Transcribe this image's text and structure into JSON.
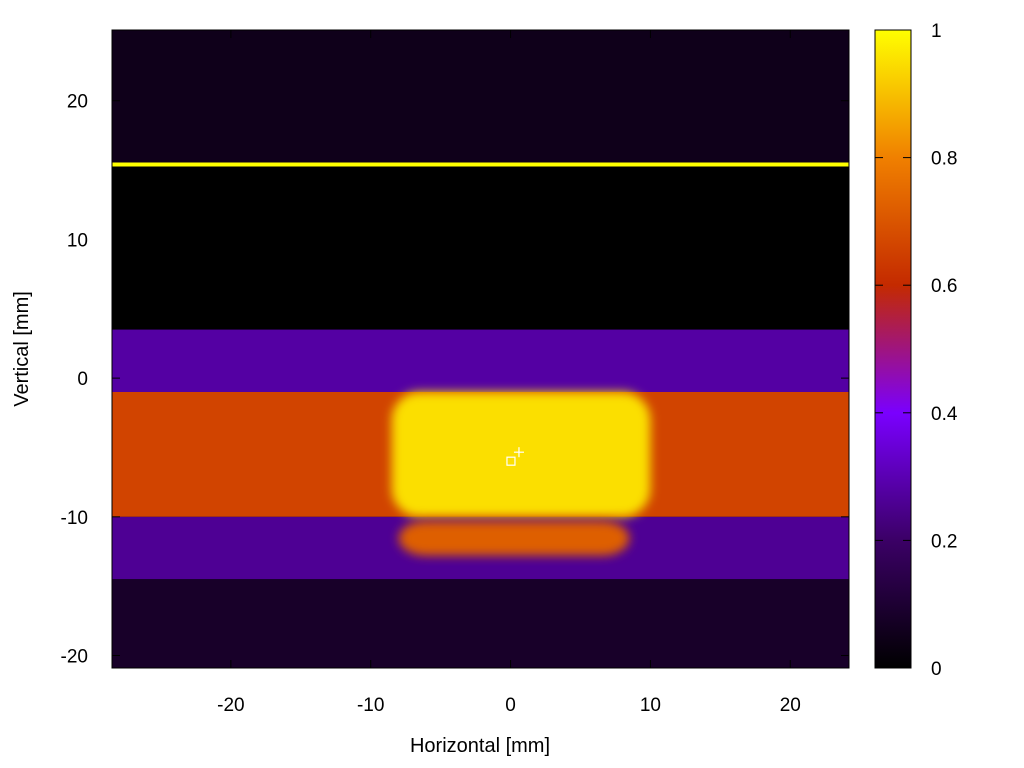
{
  "chart_data": {
    "type": "heatmap",
    "title": "",
    "xlabel": "Horizontal [mm]",
    "ylabel": "Vertical [mm]",
    "xlim": [
      -28.5,
      24.2
    ],
    "ylim": [
      -20.9,
      25.1
    ],
    "x_ticks": [
      -20,
      -10,
      0,
      10,
      20
    ],
    "y_ticks": [
      -20,
      -10,
      0,
      10,
      20
    ],
    "colorbar": {
      "range": [
        0,
        1
      ],
      "ticks": [
        0,
        0.2,
        0.4,
        0.6,
        0.8,
        1
      ],
      "tick_labels": [
        "0",
        "0.2",
        "0.4",
        "0.6",
        "0.8",
        "1"
      ],
      "colormap": [
        "#000000",
        "#3b0066",
        "#7a00ff",
        "#c42a00",
        "#f08000",
        "#ffff00"
      ]
    },
    "grid": false,
    "regions": [
      {
        "name": "upper-background",
        "x": [
          -28.5,
          24.2
        ],
        "y": [
          15.4,
          25.1
        ],
        "intensity": 0.05
      },
      {
        "name": "upper-dark-gap",
        "x": [
          -28.5,
          24.2
        ],
        "y": [
          3.5,
          15.4
        ],
        "intensity": 0.0
      },
      {
        "name": "upper-band",
        "x": [
          -28.5,
          24.2
        ],
        "y": [
          -1.0,
          3.5
        ],
        "intensity": 0.28
      },
      {
        "name": "core-band",
        "x": [
          -28.5,
          24.2
        ],
        "y": [
          -10.0,
          -1.0
        ],
        "intensity": 0.66
      },
      {
        "name": "lower-band",
        "x": [
          -28.5,
          24.2
        ],
        "y": [
          -14.5,
          -10.0
        ],
        "intensity": 0.26
      },
      {
        "name": "lower-background",
        "x": [
          -28.5,
          24.2
        ],
        "y": [
          -20.9,
          -14.5
        ],
        "intensity": 0.08
      },
      {
        "name": "hot-core",
        "x": [
          -8.5,
          10.0
        ],
        "y": [
          -10.0,
          -1.0
        ],
        "intensity": 0.95
      },
      {
        "name": "hot-lower-lobe",
        "x": [
          -8.0,
          8.5
        ],
        "y": [
          -12.8,
          -10.3
        ],
        "intensity": 0.72
      }
    ],
    "lines": [
      {
        "name": "yellow-edge-line",
        "x": [
          -28.5,
          24.2
        ],
        "y": 15.4,
        "intensity": 1.0
      }
    ],
    "markers": [
      {
        "name": "center-marker",
        "x": 0.1,
        "y": -5.7
      }
    ]
  }
}
